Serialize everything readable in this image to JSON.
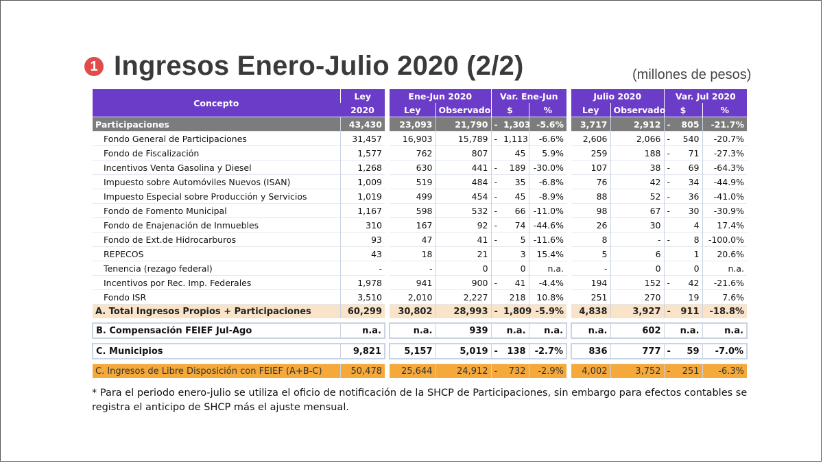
{
  "title": "Ingresos Enero-Julio 2020 (2/2)",
  "bullet": "1",
  "units": "(millones de pesos)",
  "colors": {
    "header": "#6a3cc8",
    "grey_row": "#7c7c7c",
    "tan_row": "#f9e4c9",
    "orange_row": "#f5a93a",
    "bullet": "#e04b4b"
  },
  "headers": {
    "concepto": "Concepto",
    "ley_top": "Ley",
    "ley_bottom": "2020",
    "ene_jun": "Ene-Jun 2020",
    "var_ene_jun": "Var. Ene-Jun",
    "julio": "Julio 2020",
    "var_jul": "Var. Jul 2020",
    "ley": "Ley",
    "observado": "Observado",
    "pesos": "$",
    "pct": "%"
  },
  "rows": [
    {
      "concepto": "Participaciones",
      "ley2020": "43,430",
      "ej_ley": "23,093",
      "ej_obs": "21,790",
      "ej_sign": "-",
      "ej_var": "1,303",
      "ej_pct": "-5.6%",
      "j_ley": "3,717",
      "j_obs": "2,912",
      "j_sign": "-",
      "j_var": "805",
      "j_pct": "-21.7%"
    },
    {
      "concepto": "Fondo General de Participaciones",
      "ley2020": "31,457",
      "ej_ley": "16,903",
      "ej_obs": "15,789",
      "ej_sign": "-",
      "ej_var": "1,113",
      "ej_pct": "-6.6%",
      "j_ley": "2,606",
      "j_obs": "2,066",
      "j_sign": "-",
      "j_var": "540",
      "j_pct": "-20.7%"
    },
    {
      "concepto": "Fondo de Fiscalización",
      "ley2020": "1,577",
      "ej_ley": "762",
      "ej_obs": "807",
      "ej_sign": "",
      "ej_var": "45",
      "ej_pct": "5.9%",
      "j_ley": "259",
      "j_obs": "188",
      "j_sign": "-",
      "j_var": "71",
      "j_pct": "-27.3%"
    },
    {
      "concepto": "Incentivos Venta Gasolina y Diesel",
      "ley2020": "1,268",
      "ej_ley": "630",
      "ej_obs": "441",
      "ej_sign": "-",
      "ej_var": "189",
      "ej_pct": "-30.0%",
      "j_ley": "107",
      "j_obs": "38",
      "j_sign": "-",
      "j_var": "69",
      "j_pct": "-64.3%"
    },
    {
      "concepto": "Impuesto sobre Automóviles Nuevos (ISAN)",
      "ley2020": "1,009",
      "ej_ley": "519",
      "ej_obs": "484",
      "ej_sign": "-",
      "ej_var": "35",
      "ej_pct": "-6.8%",
      "j_ley": "76",
      "j_obs": "42",
      "j_sign": "-",
      "j_var": "34",
      "j_pct": "-44.9%"
    },
    {
      "concepto": "Impuesto Especial sobre Producción y Servicios",
      "ley2020": "1,019",
      "ej_ley": "499",
      "ej_obs": "454",
      "ej_sign": "-",
      "ej_var": "45",
      "ej_pct": "-8.9%",
      "j_ley": "88",
      "j_obs": "52",
      "j_sign": "-",
      "j_var": "36",
      "j_pct": "-41.0%"
    },
    {
      "concepto": "Fondo de Fomento Municipal",
      "ley2020": "1,167",
      "ej_ley": "598",
      "ej_obs": "532",
      "ej_sign": "-",
      "ej_var": "66",
      "ej_pct": "-11.0%",
      "j_ley": "98",
      "j_obs": "67",
      "j_sign": "-",
      "j_var": "30",
      "j_pct": "-30.9%"
    },
    {
      "concepto": "Fondo de Enajenación de Inmuebles",
      "ley2020": "310",
      "ej_ley": "167",
      "ej_obs": "92",
      "ej_sign": "-",
      "ej_var": "74",
      "ej_pct": "-44.6%",
      "j_ley": "26",
      "j_obs": "30",
      "j_sign": "",
      "j_var": "4",
      "j_pct": "17.4%"
    },
    {
      "concepto": "Fondo de Ext.de Hidrocarburos",
      "ley2020": "93",
      "ej_ley": "47",
      "ej_obs": "41",
      "ej_sign": "-",
      "ej_var": "5",
      "ej_pct": "-11.6%",
      "j_ley": "8",
      "j_obs": "-",
      "j_sign": "-",
      "j_var": "8",
      "j_pct": "-100.0%"
    },
    {
      "concepto": "REPECOS",
      "ley2020": "43",
      "ej_ley": "18",
      "ej_obs": "21",
      "ej_sign": "",
      "ej_var": "3",
      "ej_pct": "15.4%",
      "j_ley": "5",
      "j_obs": "6",
      "j_sign": "",
      "j_var": "1",
      "j_pct": "20.6%"
    },
    {
      "concepto": "Tenencia (rezago federal)",
      "ley2020": "-",
      "ej_ley": "-",
      "ej_obs": "0",
      "ej_sign": "",
      "ej_var": "0",
      "ej_pct": "n.a.",
      "j_ley": "-",
      "j_obs": "0",
      "j_sign": "",
      "j_var": "0",
      "j_pct": "n.a."
    },
    {
      "concepto": "Incentivos por Rec. Imp. Federales",
      "ley2020": "1,978",
      "ej_ley": "941",
      "ej_obs": "900",
      "ej_sign": "-",
      "ej_var": "41",
      "ej_pct": "-4.4%",
      "j_ley": "194",
      "j_obs": "152",
      "j_sign": "-",
      "j_var": "42",
      "j_pct": "-21.6%"
    },
    {
      "concepto": "Fondo ISR",
      "ley2020": "3,510",
      "ej_ley": "2,010",
      "ej_obs": "2,227",
      "ej_sign": "",
      "ej_var": "218",
      "ej_pct": "10.8%",
      "j_ley": "251",
      "j_obs": "270",
      "j_sign": "",
      "j_var": "19",
      "j_pct": "7.6%"
    },
    {
      "concepto": "A. Total Ingresos Propios + Participaciones",
      "ley2020": "60,299",
      "ej_ley": "30,802",
      "ej_obs": "28,993",
      "ej_sign": "-",
      "ej_var": "1,809",
      "ej_pct": "-5.9%",
      "j_ley": "4,838",
      "j_obs": "3,927",
      "j_sign": "-",
      "j_var": "911",
      "j_pct": "-18.8%"
    },
    {
      "concepto": "B. Compensación FEIEF Jul-Ago",
      "ley2020": "n.a.",
      "ej_ley": "n.a.",
      "ej_obs": "939",
      "ej_sign": "",
      "ej_var": "n.a.",
      "ej_pct": "n.a.",
      "j_ley": "n.a.",
      "j_obs": "602",
      "j_sign": "",
      "j_var": "n.a.",
      "j_pct": "n.a."
    },
    {
      "concepto": "C. Municipios",
      "ley2020": "9,821",
      "ej_ley": "5,157",
      "ej_obs": "5,019",
      "ej_sign": "-",
      "ej_var": "138",
      "ej_pct": "-2.7%",
      "j_ley": "836",
      "j_obs": "777",
      "j_sign": "-",
      "j_var": "59",
      "j_pct": "-7.0%"
    },
    {
      "concepto": "C. Ingresos de Libre Disposición con FEIEF (A+B-C)",
      "ley2020": "50,478",
      "ej_ley": "25,644",
      "ej_obs": "24,912",
      "ej_sign": "-",
      "ej_var": "732",
      "ej_pct": "-2.9%",
      "j_ley": "4,002",
      "j_obs": "3,752",
      "j_sign": "-",
      "j_var": "251",
      "j_pct": "-6.3%"
    }
  ],
  "footnote": "* Para el periodo enero-julio se utiliza el oficio de notificación de la SHCP de Participaciones, sin embargo para efectos contables se registra el anticipo de SHCP más el ajuste mensual."
}
